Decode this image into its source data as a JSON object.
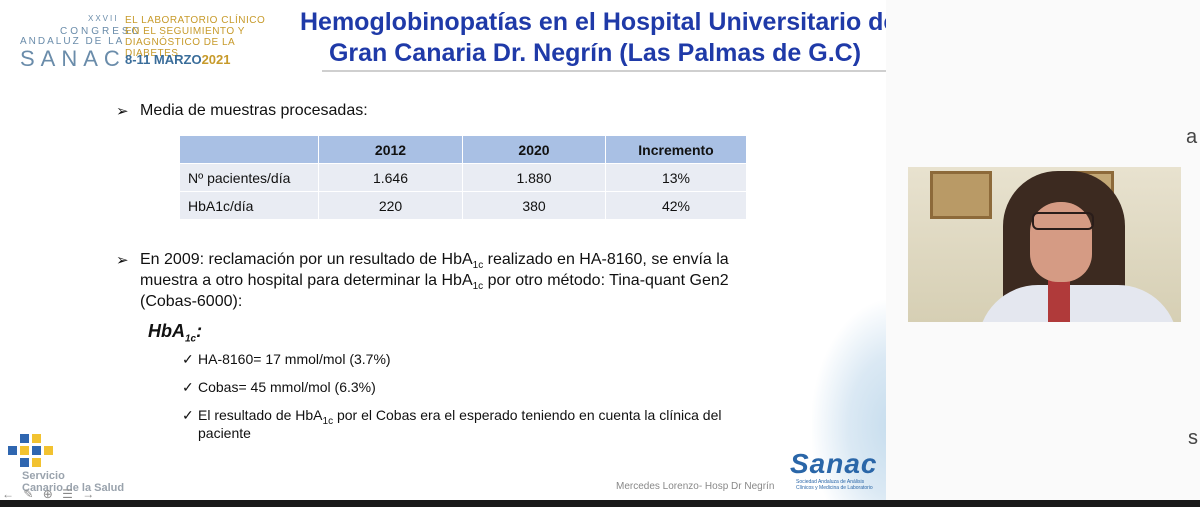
{
  "header": {
    "logo": {
      "roman": "XXVII",
      "congreso": "CONGRESO",
      "andaluz": "ANDALUZ DE LA",
      "sanac": "SANAC",
      "description": "EL LABORATORIO CLÍNICO EN EL SEGUIMIENTO Y DIAGNÓSTICO DE LA DIABETES",
      "dates": "8-11 MARZO",
      "year": "2021"
    },
    "title_line1": "Hemoglobinopatías en el Hospital Universitario de",
    "title_line2": "Gran Canaria Dr. Negrín (Las Palmas de G.C)"
  },
  "bullet1": {
    "marker": "➢",
    "text": "Media de muestras procesadas:"
  },
  "table": {
    "headers": [
      "",
      "2012",
      "2020",
      "Incremento"
    ],
    "rows": [
      [
        "Nº pacientes/día",
        "1.646",
        "1.880",
        "13%"
      ],
      [
        "HbA1c/día",
        "220",
        "380",
        "42%"
      ]
    ]
  },
  "bullet2": {
    "marker": "➢",
    "line1_a": "En 2009:  reclamación por un resultado de HbA",
    "line1_sub": "1c",
    "line1_b": " realizado en HA-8160, se envía la",
    "line2_a": "muestra a otro hospital para determinar la HbA",
    "line2_sub": "1c",
    "line2_b": " por otro método: Tina-quant Gen2",
    "line3": "(Cobas-6000):"
  },
  "hba_label": {
    "main": "HbA",
    "sub": "1c",
    "colon": ":"
  },
  "checks": {
    "marker": "✓",
    "item1": "HA-8160= 17 mmol/mol (3.7%)",
    "item2": "Cobas= 45 mmol/mol (6.3%)",
    "item3_a": "El resultado de HbA",
    "item3_sub": "1c",
    "item3_b": " por el Cobas era el esperado teniendo en cuenta la clínica del",
    "item3_line2": "paciente"
  },
  "footer": {
    "credit": "Mercedes Lorenzo- Hosp Dr Negrín",
    "sanac_logo": "Sanac",
    "sanac_sub": "Sociedad Andaluza de Análisis Clínicos y Medicina de Laboratorio",
    "sc_line1": "Servicio",
    "sc_line2": "Canario de la Salud"
  },
  "toolbar": {
    "prev": "←",
    "pen": "✎",
    "zoom": "⊕",
    "menu": "☰",
    "next": "→"
  },
  "edge_chars": {
    "top": "a",
    "bottom": "s"
  },
  "colors": {
    "title": "#1f3aa8",
    "table_header": "#a9c0e4",
    "table_cell": "#e9ecf3",
    "logo_gold": "#c79a2a",
    "logo_blue": "#6a8caa"
  }
}
